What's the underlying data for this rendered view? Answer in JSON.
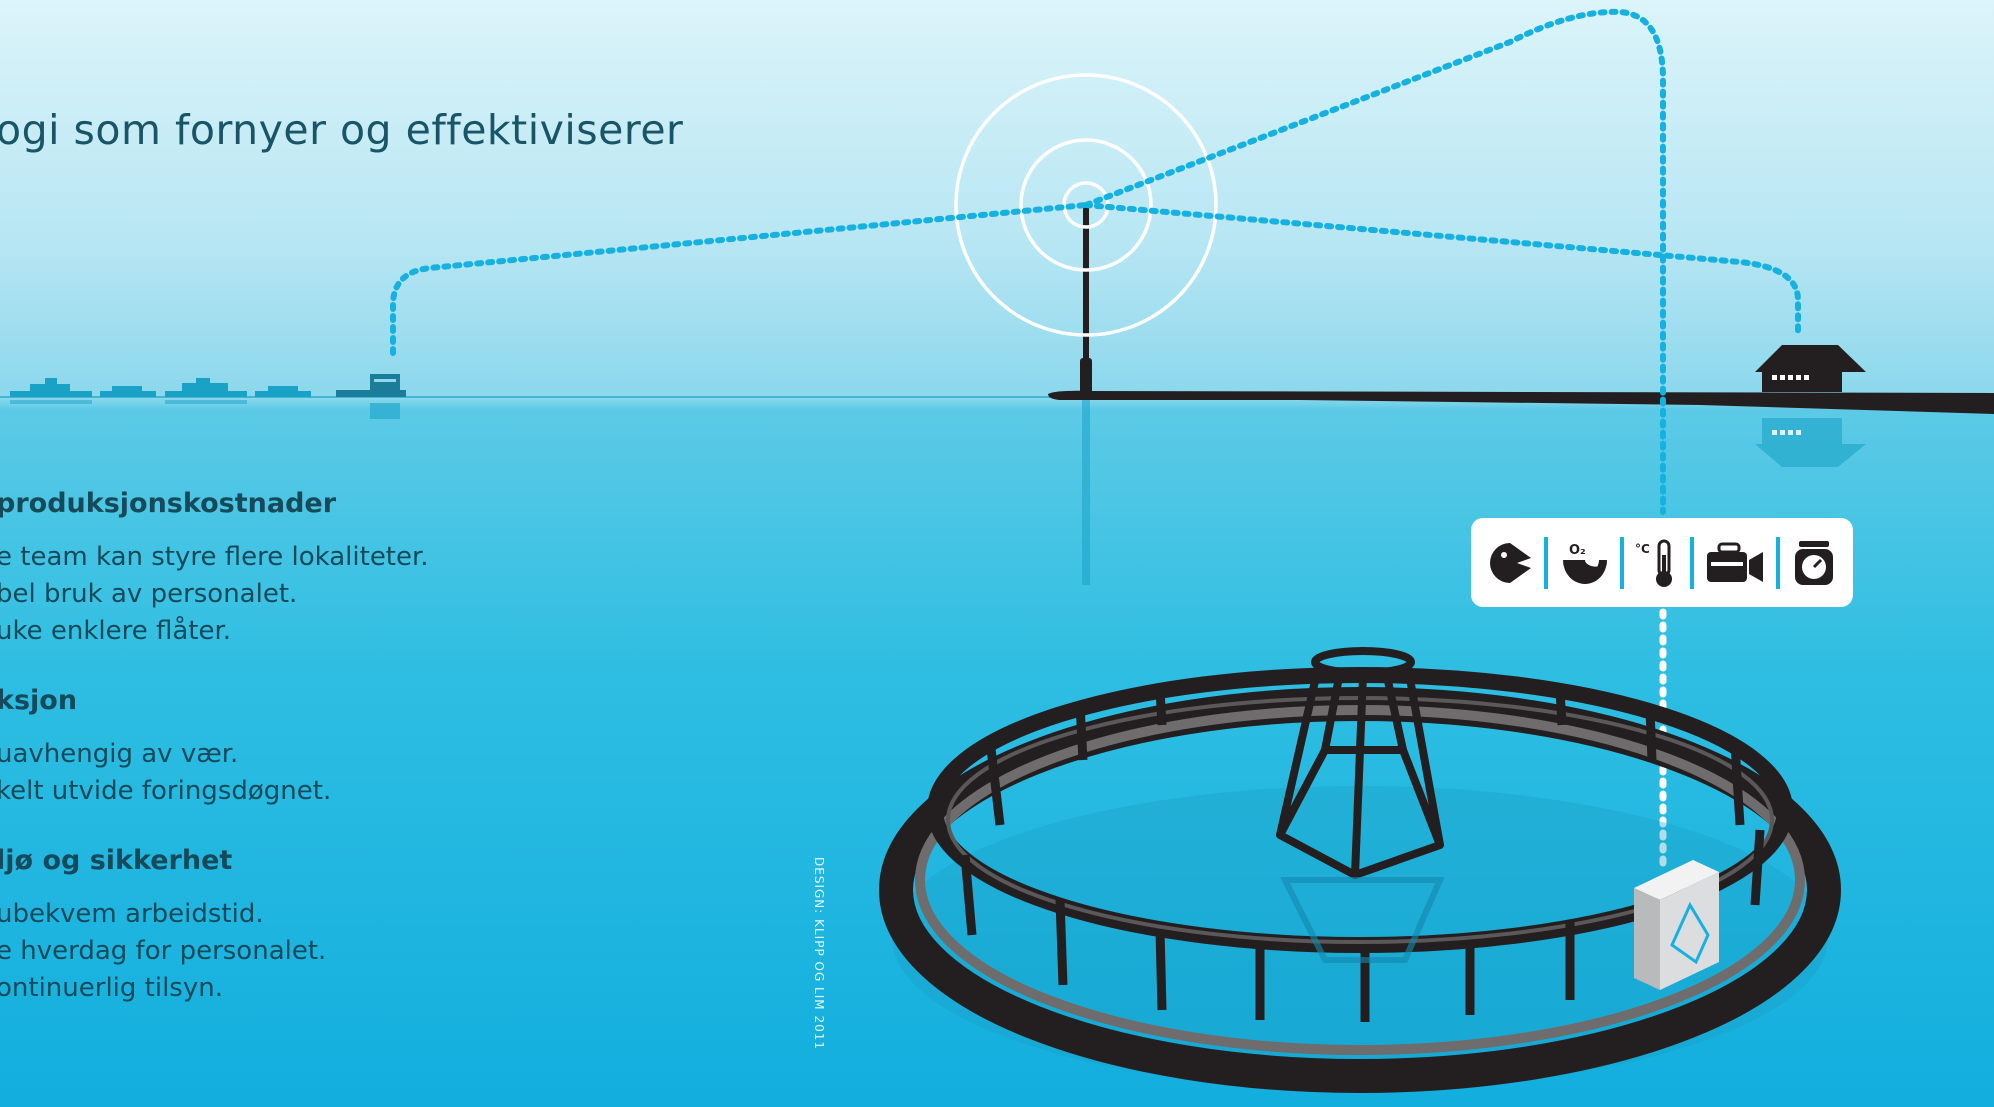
{
  "headline": "ogi som fornyer og effektiviserer",
  "sections": [
    {
      "heading": "produksjonskostnader",
      "lines": [
        "e team kan styre flere lokaliteter.",
        "bel bruk av personalet.",
        "uke enklere flåter."
      ]
    },
    {
      "heading": "ksjon",
      "lines": [
        "uavhengig av vær.",
        "kelt utvide foringsdøgnet."
      ]
    },
    {
      "heading": "ljø og sikkerhet",
      "lines": [
        "ubekvem arbeidstid.",
        "e hverdag for personalet.",
        "ontinuerlig tilsyn."
      ]
    }
  ],
  "credit": "DESIGN: KLIPP OG LIM 2011",
  "sensor_icons": [
    "fish-feeding-icon",
    "oxygen-icon",
    "temperature-icon",
    "camera-icon",
    "scale-icon"
  ],
  "sensor_labels": {
    "oxygen": "O₂",
    "temperature": "°C"
  },
  "colors": {
    "link_dotted": "#17b1e0",
    "structures": "#231f20",
    "text": "#164a5a",
    "water_reflection": "#1aa3c7"
  }
}
